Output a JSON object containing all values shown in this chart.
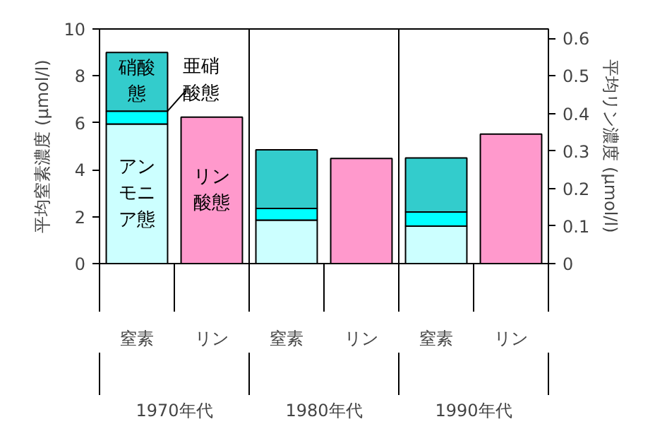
{
  "chart_data": {
    "type": "bar",
    "stacked": true,
    "categories": [
      "窒素",
      "リン",
      "窒素",
      "リン",
      "窒素",
      "リン"
    ],
    "annotations": [
      "1970年代",
      "1980年代",
      "1990年代"
    ],
    "ylabel": "平均窒素濃度 (μmol/l)",
    "y2label": "平均リン濃度 (μmol/l)",
    "ylim": [
      0,
      10
    ],
    "yticks": [
      0,
      2,
      4,
      6,
      8,
      10
    ],
    "y2lim": [
      0,
      0.625
    ],
    "y2ticks": [
      0,
      0.1,
      0.2,
      0.3,
      0.4,
      0.5,
      0.6
    ],
    "series": [
      {
        "name": "アンモニア態",
        "color": "#ccffff",
        "values": [
          5.95,
          null,
          1.85,
          null,
          1.6,
          null
        ]
      },
      {
        "name": "亜硝酸態",
        "color": "#00ffff",
        "values": [
          0.55,
          null,
          0.5,
          null,
          0.6,
          null
        ]
      },
      {
        "name": "硝酸態",
        "color": "#33cccc",
        "values": [
          2.5,
          null,
          2.5,
          null,
          2.3,
          null
        ]
      },
      {
        "name": "リン酸態",
        "color": "#ff99cc",
        "axis": "y2",
        "values": [
          null,
          0.39,
          null,
          0.28,
          null,
          0.345
        ]
      }
    ]
  }
}
